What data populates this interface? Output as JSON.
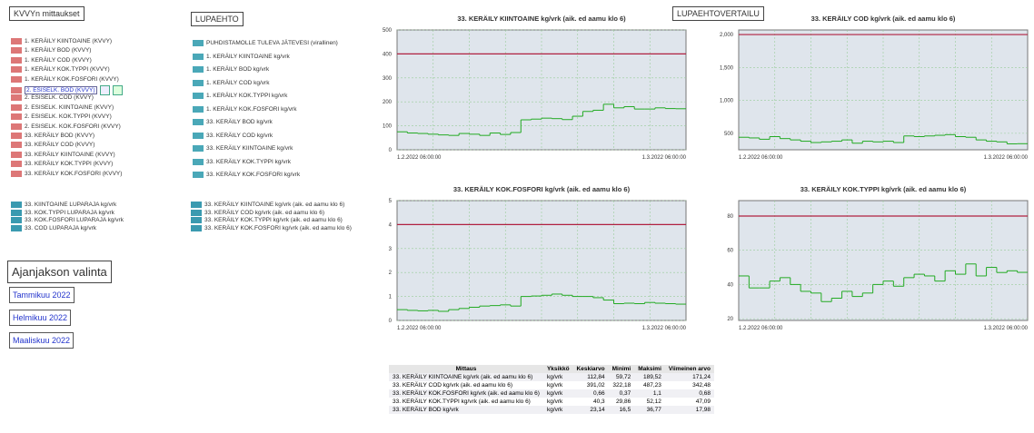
{
  "left_panel": {
    "title": "KVVYn mittaukset",
    "items": [
      "1. KERÄILY KIINTOAINE (KVVY)",
      "1. KERÄILY BOD (KVVY)",
      "1. KERÄILY COD (KVVY)",
      "1. KERÄILY KOK.TYPPI (KVVY)",
      "1. KERÄILY KOK.FOSFORI (KVVY)",
      "2. ESISELK. BOD (KVVY)",
      "2. ESISELK. COD (KVVY)",
      "2. ESISELK. KIINTOAINE (KVVY)",
      "2. ESISELK. KOK.TYPPI (KVVY)",
      "2. ESISELK. KOK.FOSFORI (KVVY)",
      "33. KERÄILY BOD (KVVY)",
      "33. KERÄILY COD (KVVY)",
      "33. KERÄILY KIINTOAINE (KVVY)",
      "33. KERÄILY KOK.TYPPI (KVVY)",
      "33. KERÄILY KOK.FOSFORI (KVVY)"
    ],
    "items2": [
      "33. KIINTOAINE LUPARAJA kg/vrk",
      "33. KOK.TYPPI LUPARAJA kg/vrk",
      "33. KOK.FOSFORI LUPARAJA kg/vrk",
      "33. COD LUPARAJA kg/vrk"
    ]
  },
  "lupaehto": {
    "title": "LUPAEHTO",
    "items": [
      "PUHDISTAMOLLE TULEVA JÄTEVESI (virallinen)",
      "1. KERÄILY KIINTOAINE kg/vrk",
      "1. KERÄILY BOD kg/vrk",
      "1. KERÄILY COD kg/vrk",
      "1. KERÄILY KOK.TYPPI kg/vrk",
      "1. KERÄILY KOK.FOSFORI kg/vrk",
      "33. KERÄILY BOD kg/vrk",
      "33. KERÄILY COD kg/vrk",
      "33. KERÄILY KIINTOAINE kg/vrk",
      "33. KERÄILY KOK.TYPPI kg/vrk",
      "33. KERÄILY KOK.FOSFORI kg/vrk"
    ],
    "items2": [
      "33. KERÄILY KIINTOAINE kg/vrk (aik. ed aamu klo 6)",
      "33. KERÄILY COD kg/vrk (aik. ed aamu klo 6)",
      "33. KERÄILY KOK.TYPPI kg/vrk (aik. ed aamu klo 6)",
      "33. KERÄILY KOK.FOSFORI kg/vrk (aik. ed aamu klo 6)"
    ]
  },
  "period": {
    "title": "Ajanjakson valinta",
    "buttons": [
      "Tammikuu 2022",
      "Helmikuu 2022",
      "Maaliskuu 2022"
    ]
  },
  "comparison_label": "LUPAEHTOVERTAILU",
  "charts": [
    {
      "title": "33. KERÄILY KIINTOAINE kg/vrk (aik. ed aamu klo 6)",
      "x_start": "1.2.2022 06:00:00",
      "x_end": "1.3.2022 06:00:00",
      "ylim": [
        0,
        500
      ],
      "yticks": [
        0,
        100,
        200,
        300,
        400,
        500
      ],
      "limit": 400,
      "values": [
        75,
        70,
        68,
        65,
        62,
        60,
        68,
        65,
        60,
        70,
        64,
        72,
        125,
        128,
        132,
        130,
        126,
        140,
        160,
        165,
        190,
        175,
        180,
        170,
        170,
        175,
        172,
        171.24
      ]
    },
    {
      "title": "33. KERÄILY COD kg/vrk (aik. ed aamu klo 6)",
      "x_start": "1.2.2022 06:00:00",
      "x_end": "1.3.2022 06:00:00",
      "ylim": [
        250,
        2070
      ],
      "yticks": [
        500,
        {
          "value": 1000,
          "label": "1,000"
        },
        {
          "value": 1500,
          "label": "1,500"
        },
        {
          "value": 2000,
          "label": "2,000"
        }
      ],
      "limit": 2000,
      "values": [
        440,
        430,
        410,
        450,
        420,
        400,
        380,
        360,
        370,
        380,
        400,
        350,
        380,
        370,
        380,
        360,
        460,
        450,
        460,
        470,
        480,
        450,
        440,
        400,
        380,
        370,
        340,
        342.48
      ]
    },
    {
      "title": "33. KERÄILY KOK.FOSFORI kg/vrk (aik. ed aamu klo 6)",
      "x_start": "1.2.2022 06:00:00",
      "x_end": "1.3.2022 06:00:00",
      "ylim": [
        0,
        5
      ],
      "yticks": [
        0,
        1,
        2,
        3,
        4,
        5
      ],
      "limit": 4,
      "values": [
        0.45,
        0.42,
        0.4,
        0.42,
        0.38,
        0.45,
        0.5,
        0.55,
        0.6,
        0.62,
        0.65,
        0.6,
        1.0,
        1.02,
        1.05,
        1.1,
        1.05,
        1.0,
        1.0,
        0.95,
        0.85,
        0.7,
        0.72,
        0.7,
        0.75,
        0.72,
        0.7,
        0.68
      ]
    },
    {
      "title": "33. KERÄILY KOK.TYPPI kg/vrk (aik. ed aamu klo 6)",
      "x_start": "1.2.2022 06:00:00",
      "x_end": "1.3.2022 06:00:00",
      "ylim": [
        19,
        89
      ],
      "yticks": [
        20,
        40,
        60,
        80
      ],
      "limit": 80,
      "values": [
        45,
        38,
        38,
        42,
        44,
        40,
        36,
        35,
        30,
        32,
        36,
        33,
        35,
        40,
        42,
        39,
        44,
        46,
        45,
        42,
        48,
        46,
        52,
        45,
        50,
        47,
        48,
        47.09
      ]
    }
  ],
  "table": {
    "headers": [
      "Mittaus",
      "Yksikkö",
      "Keskiarvo",
      "Minimi",
      "Maksimi",
      "Viimeinen arvo"
    ],
    "rows": [
      [
        "33. KERÄILY KIINTOAINE kg/vrk (aik. ed aamu klo 6)",
        "kg/vrk",
        "112,84",
        "59,72",
        "189,52",
        "171,24"
      ],
      [
        "33. KERÄILY COD kg/vrk (aik. ed aamu klo 6)",
        "kg/vrk",
        "391,02",
        "322,18",
        "487,23",
        "342,48"
      ],
      [
        "33. KERÄILY KOK.FOSFORI kg/vrk (aik. ed aamu klo 6)",
        "kg/vrk",
        "0,66",
        "0,37",
        "1,1",
        "0,68"
      ],
      [
        "33. KERÄILY KOK.TYPPI kg/vrk (aik. ed aamu klo 6)",
        "kg/vrk",
        "40,3",
        "29,86",
        "52,12",
        "47,09"
      ],
      [
        "33. KERÄILY BOD kg/vrk",
        "kg/vrk",
        "23,14",
        "16,5",
        "36,77",
        "17,98"
      ]
    ]
  }
}
